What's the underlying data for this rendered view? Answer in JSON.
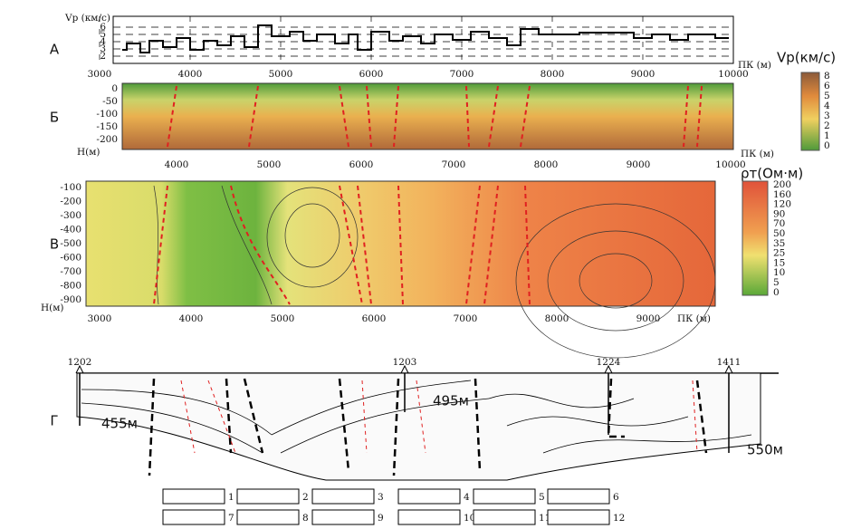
{
  "panels": {
    "A": {
      "label": "А",
      "y_title": "Vp (км/с)",
      "y_ticks": [
        "6",
        "5",
        "4",
        "3",
        "2"
      ],
      "x_ticks": [
        "3000",
        "4000",
        "5000",
        "6000",
        "7000",
        "8000",
        "9000",
        "10000"
      ],
      "x_title": "ПК (м)"
    },
    "B": {
      "label": "Б",
      "y_ticks": [
        "0",
        "-50",
        "-100",
        "-150",
        "-200"
      ],
      "y_title": "H(м)",
      "x_ticks": [
        "4000",
        "5000",
        "6000",
        "7000",
        "8000",
        "9000",
        "10000"
      ],
      "x_title": "ПК (м)",
      "colorbar": {
        "title": "Vp(км/с)",
        "ticks": [
          "8",
          "6",
          "5",
          "4",
          "3",
          "2",
          "1",
          "0"
        ]
      }
    },
    "C": {
      "label": "В",
      "y_ticks": [
        "-100",
        "-200",
        "-300",
        "-400",
        "-500",
        "-600",
        "-700",
        "-800",
        "-900"
      ],
      "y_title": "H(м)",
      "x_ticks": [
        "3000",
        "4000",
        "5000",
        "6000",
        "7000",
        "8000",
        "9000"
      ],
      "x_title": "ПК (м)",
      "colorbar": {
        "title": "ρт(Ом·м)",
        "ticks": [
          "200",
          "160",
          "120",
          "90",
          "70",
          "50",
          "35",
          "25",
          "15",
          "10",
          "5",
          "0"
        ]
      }
    },
    "D": {
      "label": "Г",
      "wells": [
        "1202",
        "1203",
        "1224",
        "1411"
      ],
      "depths": [
        "455м",
        "495м",
        "550м"
      ]
    }
  },
  "legend": [
    "1",
    "2",
    "3",
    "4",
    "5",
    "6",
    "7",
    "8",
    "9",
    "10",
    "11",
    "12"
  ]
}
